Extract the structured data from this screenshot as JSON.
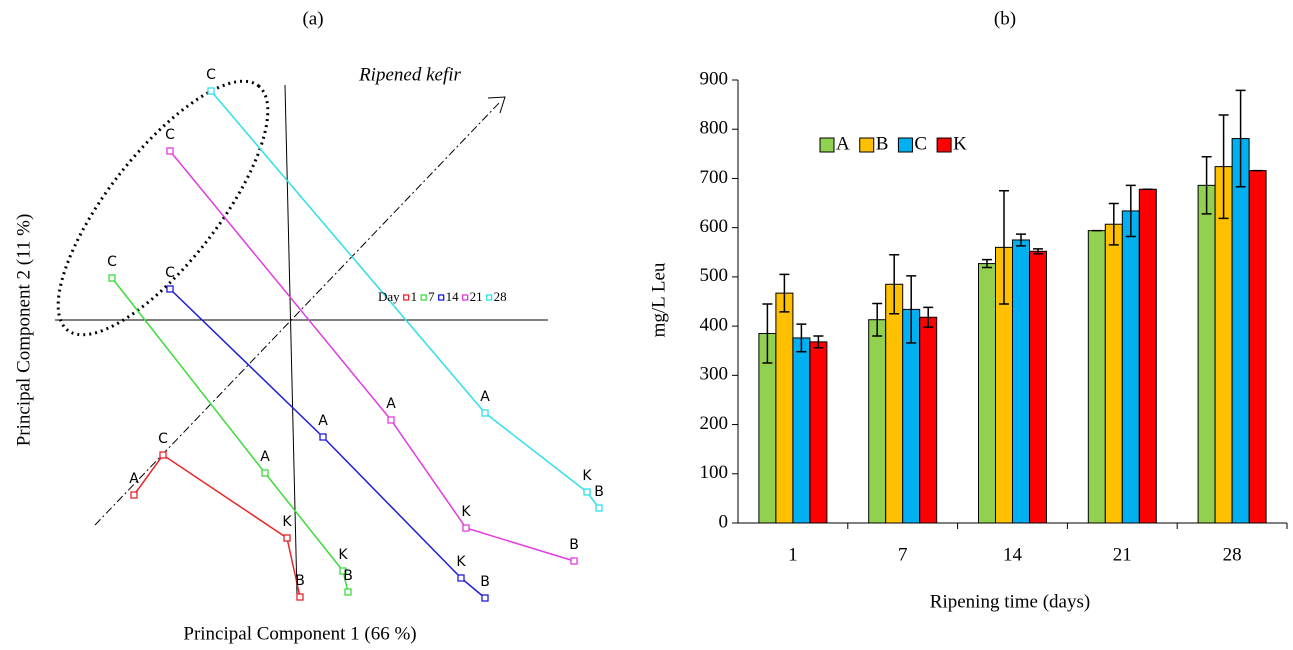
{
  "chart_data": [
    {
      "type": "scatter",
      "title": "(a)",
      "xlabel": "Principal Component 1 (66 %)",
      "ylabel": "Principal Component 2 (11 %)",
      "annotation": "Ripened kefir",
      "legend_title": "Day",
      "xlim": [
        -2.5,
        3.3
      ],
      "ylim": [
        -2.9,
        2.6
      ],
      "series": [
        {
          "name": "1",
          "color": "#e8262a",
          "point_labels": [
            "A",
            "C",
            "K",
            "B"
          ],
          "x": [
            -1.56,
            -1.27,
            -0.03,
            0.1
          ],
          "y": [
            -1.75,
            -1.35,
            -2.18,
            -2.77
          ]
        },
        {
          "name": "7",
          "color": "#3ddc3d",
          "point_labels": [
            "C",
            "A",
            "K",
            "B"
          ],
          "x": [
            -1.78,
            -0.25,
            0.53,
            0.58
          ],
          "y": [
            0.42,
            -1.53,
            -2.51,
            -2.72
          ]
        },
        {
          "name": "14",
          "color": "#1c1cdc",
          "point_labels": [
            "C",
            "A",
            "K",
            "B"
          ],
          "x": [
            -1.2,
            0.33,
            1.71,
            1.95
          ],
          "y": [
            0.31,
            -1.17,
            -2.58,
            -2.78
          ]
        },
        {
          "name": "21",
          "color": "#e23be2",
          "point_labels": [
            "C",
            "A",
            "K",
            "B"
          ],
          "x": [
            -1.2,
            1.01,
            1.76,
            2.84
          ],
          "y": [
            1.69,
            -1.0,
            -2.08,
            -2.41
          ]
        },
        {
          "name": "28",
          "color": "#2fe0e8",
          "point_labels": [
            "C",
            "A",
            "K",
            "B"
          ],
          "x": [
            -0.79,
            1.95,
            2.97,
            3.09
          ],
          "y": [
            2.29,
            -0.93,
            -1.72,
            -1.88
          ]
        }
      ]
    },
    {
      "type": "bar",
      "title": "(b)",
      "xlabel": "Ripening time (days)",
      "ylabel": "mg/L Leu",
      "categories": [
        "1",
        "7",
        "14",
        "21",
        "28"
      ],
      "ylim": [
        0,
        900
      ],
      "yticks": [
        0,
        100,
        200,
        300,
        400,
        500,
        600,
        700,
        800,
        900
      ],
      "series": [
        {
          "name": "A",
          "color": "#92d050",
          "values": [
            385,
            413,
            527,
            594,
            686
          ],
          "errors": [
            60,
            33,
            8,
            0,
            58
          ]
        },
        {
          "name": "B",
          "color": "#ffc000",
          "values": [
            467,
            485,
            560,
            607,
            724
          ],
          "errors": [
            38,
            60,
            115,
            42,
            105
          ]
        },
        {
          "name": "C",
          "color": "#00b0f0",
          "values": [
            376,
            434,
            575,
            634,
            781
          ],
          "errors": [
            28,
            68,
            12,
            52,
            98
          ]
        },
        {
          "name": "K",
          "color": "#ff0000",
          "values": [
            368,
            418,
            552,
            678,
            716
          ],
          "errors": [
            12,
            20,
            5,
            0,
            0
          ]
        }
      ]
    }
  ]
}
